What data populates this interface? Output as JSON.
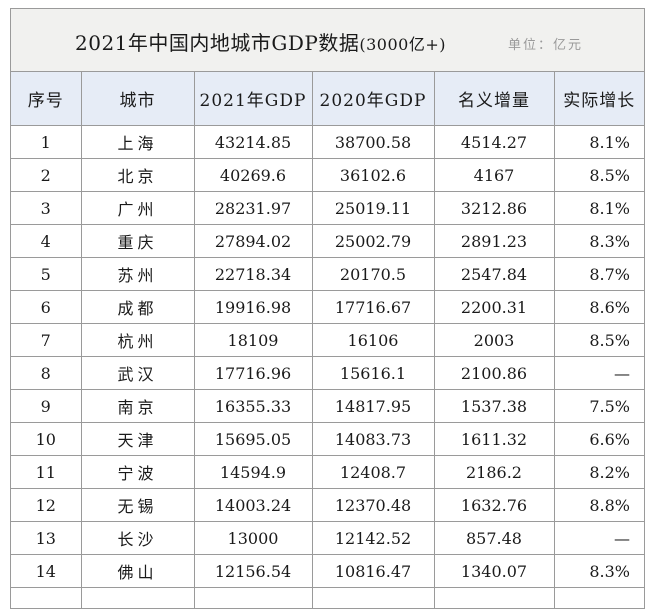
{
  "table": {
    "title": "2021年中国内地城市GDP数据",
    "title_suffix": "(3000亿+)",
    "unit": "单位：亿元",
    "headers": [
      "序号",
      "城市",
      "2021年GDP",
      "2020年GDP",
      "名义增量",
      "实际增长"
    ],
    "rows": [
      {
        "rank": "1",
        "city": "上海",
        "gdp2021": "43214.85",
        "gdp2020": "38700.58",
        "increase": "4514.27",
        "growth": "8.1%"
      },
      {
        "rank": "2",
        "city": "北京",
        "gdp2021": "40269.6",
        "gdp2020": "36102.6",
        "increase": "4167",
        "growth": "8.5%"
      },
      {
        "rank": "3",
        "city": "广州",
        "gdp2021": "28231.97",
        "gdp2020": "25019.11",
        "increase": "3212.86",
        "growth": "8.1%"
      },
      {
        "rank": "4",
        "city": "重庆",
        "gdp2021": "27894.02",
        "gdp2020": "25002.79",
        "increase": "2891.23",
        "growth": "8.3%"
      },
      {
        "rank": "5",
        "city": "苏州",
        "gdp2021": "22718.34",
        "gdp2020": "20170.5",
        "increase": "2547.84",
        "growth": "8.7%"
      },
      {
        "rank": "6",
        "city": "成都",
        "gdp2021": "19916.98",
        "gdp2020": "17716.67",
        "increase": "2200.31",
        "growth": "8.6%"
      },
      {
        "rank": "7",
        "city": "杭州",
        "gdp2021": "18109",
        "gdp2020": "16106",
        "increase": "2003",
        "growth": "8.5%"
      },
      {
        "rank": "8",
        "city": "武汉",
        "gdp2021": "17716.96",
        "gdp2020": "15616.1",
        "increase": "2100.86",
        "growth": "—"
      },
      {
        "rank": "9",
        "city": "南京",
        "gdp2021": "16355.33",
        "gdp2020": "14817.95",
        "increase": "1537.38",
        "growth": "7.5%"
      },
      {
        "rank": "10",
        "city": "天津",
        "gdp2021": "15695.05",
        "gdp2020": "14083.73",
        "increase": "1611.32",
        "growth": "6.6%"
      },
      {
        "rank": "11",
        "city": "宁波",
        "gdp2021": "14594.9",
        "gdp2020": "12408.7",
        "increase": "2186.2",
        "growth": "8.2%"
      },
      {
        "rank": "12",
        "city": "无锡",
        "gdp2021": "14003.24",
        "gdp2020": "12370.48",
        "increase": "1632.76",
        "growth": "8.8%"
      },
      {
        "rank": "13",
        "city": "长沙",
        "gdp2021": "13000",
        "gdp2020": "12142.52",
        "increase": "857.48",
        "growth": "—"
      },
      {
        "rank": "14",
        "city": "佛山",
        "gdp2021": "12156.54",
        "gdp2020": "10816.47",
        "increase": "1340.07",
        "growth": "8.3%"
      }
    ]
  }
}
